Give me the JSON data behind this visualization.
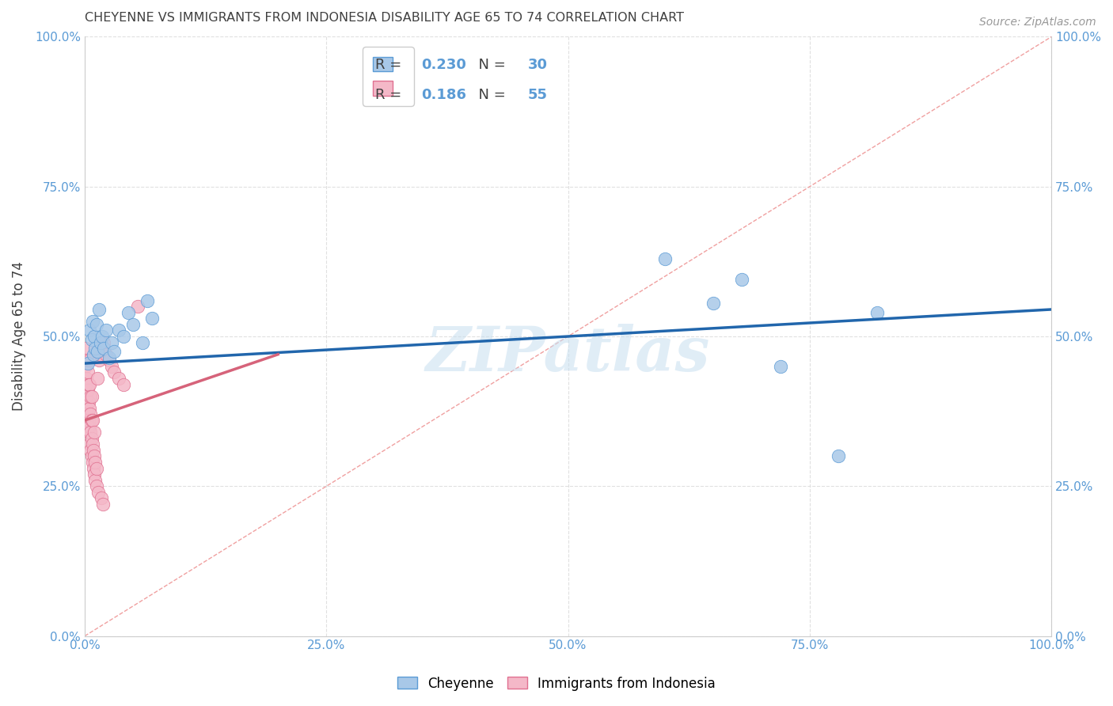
{
  "title": "CHEYENNE VS IMMIGRANTS FROM INDONESIA DISABILITY AGE 65 TO 74 CORRELATION CHART",
  "source": "Source: ZipAtlas.com",
  "ylabel": "Disability Age 65 to 74",
  "x_tick_labels": [
    "0.0%",
    "25.0%",
    "50.0%",
    "75.0%",
    "100.0%"
  ],
  "x_tick_positions": [
    0,
    0.25,
    0.5,
    0.75,
    1.0
  ],
  "y_tick_labels": [
    "0.0%",
    "25.0%",
    "50.0%",
    "75.0%",
    "100.0%"
  ],
  "y_tick_positions": [
    0,
    0.25,
    0.5,
    0.75,
    1.0
  ],
  "xlim": [
    0,
    1.0
  ],
  "ylim": [
    0,
    1.0
  ],
  "legend_labels": [
    "Cheyenne",
    "Immigrants from Indonesia"
  ],
  "legend_R": [
    0.23,
    0.186
  ],
  "legend_N": [
    30,
    55
  ],
  "cheyenne_color": "#a8c8e8",
  "indonesia_color": "#f4b8c8",
  "cheyenne_edge": "#5b9bd5",
  "indonesia_edge": "#e07090",
  "trendline_cheyenne_color": "#2166ac",
  "trendline_indonesia_color": "#d6637a",
  "diagonal_color": "#f0a0a0",
  "watermark": "ZIPatlas",
  "background_color": "#ffffff",
  "grid_color": "#e0e0e0",
  "title_color": "#404040",
  "axis_label_color": "#5b9bd5",
  "cheyenne_x": [
    0.003,
    0.005,
    0.007,
    0.008,
    0.009,
    0.01,
    0.011,
    0.012,
    0.013,
    0.015,
    0.016,
    0.018,
    0.02,
    0.022,
    0.025,
    0.028,
    0.03,
    0.035,
    0.04,
    0.045,
    0.05,
    0.06,
    0.065,
    0.07,
    0.6,
    0.65,
    0.68,
    0.72,
    0.78,
    0.82
  ],
  "cheyenne_y": [
    0.455,
    0.51,
    0.495,
    0.525,
    0.47,
    0.5,
    0.48,
    0.52,
    0.475,
    0.545,
    0.49,
    0.5,
    0.48,
    0.51,
    0.465,
    0.49,
    0.475,
    0.51,
    0.5,
    0.54,
    0.52,
    0.49,
    0.56,
    0.53,
    0.63,
    0.555,
    0.595,
    0.45,
    0.3,
    0.54
  ],
  "indonesia_x": [
    0.001,
    0.001,
    0.001,
    0.002,
    0.002,
    0.002,
    0.002,
    0.003,
    0.003,
    0.003,
    0.003,
    0.004,
    0.004,
    0.004,
    0.004,
    0.005,
    0.005,
    0.005,
    0.005,
    0.005,
    0.006,
    0.006,
    0.006,
    0.006,
    0.007,
    0.007,
    0.007,
    0.007,
    0.008,
    0.008,
    0.008,
    0.009,
    0.009,
    0.01,
    0.01,
    0.01,
    0.011,
    0.011,
    0.012,
    0.012,
    0.013,
    0.014,
    0.015,
    0.016,
    0.017,
    0.018,
    0.019,
    0.02,
    0.022,
    0.025,
    0.028,
    0.03,
    0.035,
    0.04,
    0.055
  ],
  "indonesia_y": [
    0.42,
    0.45,
    0.48,
    0.38,
    0.4,
    0.43,
    0.46,
    0.35,
    0.37,
    0.41,
    0.44,
    0.34,
    0.36,
    0.39,
    0.42,
    0.32,
    0.35,
    0.38,
    0.42,
    0.46,
    0.31,
    0.34,
    0.37,
    0.4,
    0.3,
    0.33,
    0.36,
    0.4,
    0.29,
    0.32,
    0.36,
    0.28,
    0.31,
    0.27,
    0.3,
    0.34,
    0.26,
    0.29,
    0.25,
    0.28,
    0.43,
    0.24,
    0.46,
    0.47,
    0.23,
    0.48,
    0.22,
    0.49,
    0.47,
    0.46,
    0.45,
    0.44,
    0.43,
    0.42,
    0.55
  ],
  "cheyenne_trendline_x": [
    0.0,
    1.0
  ],
  "cheyenne_trendline_y": [
    0.455,
    0.545
  ],
  "indonesia_trendline_x": [
    0.0,
    0.2
  ],
  "indonesia_trendline_y": [
    0.36,
    0.47
  ]
}
